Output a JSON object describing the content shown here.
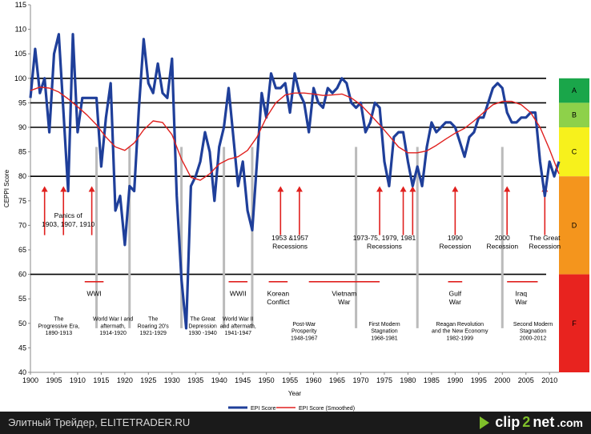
{
  "chart_data": {
    "type": "line",
    "title": "",
    "xlabel": "Year",
    "ylabel": "CEPPI Score",
    "xlim": [
      1900,
      2012
    ],
    "ylim": [
      40,
      115
    ],
    "x_ticks": [
      1900,
      1905,
      1910,
      1915,
      1920,
      1925,
      1930,
      1935,
      1940,
      1945,
      1950,
      1955,
      1960,
      1965,
      1970,
      1975,
      1980,
      1985,
      1990,
      1995,
      2000,
      2005,
      2010
    ],
    "y_ticks": [
      40,
      45,
      50,
      55,
      60,
      65,
      70,
      75,
      80,
      85,
      90,
      95,
      100,
      105,
      110,
      115
    ],
    "reference_lines": [
      100,
      95,
      90,
      80,
      60
    ],
    "series": [
      {
        "name": "EPI Score",
        "color": "#1f3f9a",
        "x": [
          1900,
          1901,
          1902,
          1903,
          1904,
          1905,
          1906,
          1907,
          1908,
          1909,
          1910,
          1911,
          1912,
          1913,
          1914,
          1915,
          1916,
          1917,
          1918,
          1919,
          1920,
          1921,
          1922,
          1923,
          1924,
          1925,
          1926,
          1927,
          1928,
          1929,
          1930,
          1931,
          1932,
          1933,
          1934,
          1935,
          1936,
          1937,
          1938,
          1939,
          1940,
          1941,
          1942,
          1943,
          1944,
          1945,
          1946,
          1947,
          1948,
          1949,
          1950,
          1951,
          1952,
          1953,
          1954,
          1955,
          1956,
          1957,
          1958,
          1959,
          1960,
          1961,
          1962,
          1963,
          1964,
          1965,
          1966,
          1967,
          1968,
          1969,
          1970,
          1971,
          1972,
          1973,
          1974,
          1975,
          1976,
          1977,
          1978,
          1979,
          1980,
          1981,
          1982,
          1983,
          1984,
          1985,
          1986,
          1987,
          1988,
          1989,
          1990,
          1991,
          1992,
          1993,
          1994,
          1995,
          1996,
          1997,
          1998,
          1999,
          2000,
          2001,
          2002,
          2003,
          2004,
          2005,
          2006,
          2007,
          2008,
          2009,
          2010,
          2011,
          2012
        ],
        "values": [
          96,
          106,
          97,
          100,
          89,
          105,
          109,
          93,
          77,
          109,
          89,
          96,
          96,
          96,
          96,
          82,
          92,
          99,
          73,
          76,
          66,
          78,
          77,
          94,
          108,
          99,
          97,
          103,
          97,
          96,
          104,
          76,
          59,
          49,
          78,
          80,
          83,
          89,
          85,
          75,
          86,
          90,
          98,
          88,
          78,
          83,
          73,
          69,
          83,
          97,
          92,
          101,
          98,
          98,
          99,
          93,
          101,
          97,
          95,
          89,
          98,
          95,
          94,
          98,
          97,
          98,
          100,
          99,
          95,
          94,
          95,
          89,
          91,
          95,
          94,
          83,
          78,
          88,
          89,
          89,
          83,
          78,
          82,
          78,
          86,
          91,
          89,
          90,
          91,
          91,
          90,
          87,
          84,
          88,
          89,
          92,
          92,
          95,
          98,
          99,
          98,
          93,
          91,
          91,
          92,
          92,
          93,
          93,
          83,
          76,
          83,
          80,
          83
        ]
      },
      {
        "name": "EPI Score (Smoothed)",
        "color": "#e0201e",
        "x": [
          1900,
          1902,
          1904,
          1906,
          1908,
          1910,
          1912,
          1914,
          1916,
          1918,
          1920,
          1922,
          1924,
          1926,
          1928,
          1930,
          1932,
          1934,
          1936,
          1938,
          1940,
          1942,
          1944,
          1946,
          1948,
          1950,
          1952,
          1954,
          1956,
          1958,
          1960,
          1962,
          1964,
          1966,
          1968,
          1970,
          1972,
          1974,
          1976,
          1978,
          1980,
          1982,
          1984,
          1986,
          1988,
          1990,
          1992,
          1994,
          1996,
          1998,
          2000,
          2002,
          2004,
          2006,
          2008,
          2010,
          2012
        ],
        "values": [
          97.5,
          98.2,
          98.0,
          97.2,
          95.8,
          94.2,
          92.5,
          90.5,
          88.0,
          86.0,
          85.3,
          86.8,
          89.5,
          91.3,
          91.0,
          88.5,
          83.5,
          79.8,
          79.2,
          80.5,
          82.5,
          83.5,
          84.0,
          85.3,
          88.0,
          92.0,
          95.0,
          96.6,
          97.0,
          97.0,
          96.8,
          96.5,
          96.6,
          96.8,
          96.0,
          94.6,
          92.6,
          90.5,
          88.3,
          86.0,
          84.8,
          84.8,
          85.2,
          86.3,
          87.6,
          88.8,
          89.8,
          91.3,
          93.0,
          94.6,
          95.3,
          95.3,
          94.6,
          93.0,
          90.0,
          85.5,
          80.5
        ]
      }
    ],
    "grade_bands": [
      {
        "label": "A",
        "from": 95,
        "to": 100,
        "color": "#1aa64a"
      },
      {
        "label": "B",
        "from": 90,
        "to": 95,
        "color": "#8ed14a"
      },
      {
        "label": "C",
        "from": 80,
        "to": 90,
        "color": "#f7f11c"
      },
      {
        "label": "D",
        "from": 60,
        "to": 80,
        "color": "#f4951d"
      },
      {
        "label": "F",
        "from": 40,
        "to": 60,
        "color": "#e8231f"
      }
    ],
    "gray_markers": [
      1914,
      1921,
      1932,
      1941,
      1947,
      1969,
      1982,
      2000
    ],
    "recession_arrows": [
      1903,
      1907,
      1913,
      1953,
      1957,
      1974,
      1979,
      1981,
      1990,
      2001,
      2009
    ],
    "war_bars": [
      {
        "label": "WWI",
        "from": 1911.5,
        "to": 1915.5,
        "label_x": 1913.5
      },
      {
        "label": "WWII",
        "from": 1942,
        "to": 1946,
        "label_x": 1944
      },
      {
        "label": "Korean Conflict",
        "from": 1950.5,
        "to": 1954.5,
        "label_x": 1952.5
      },
      {
        "label": "Vietnam War",
        "from": 1959,
        "to": 1974,
        "label_x": 1966.5
      },
      {
        "label": "Gulf War",
        "from": 1988.5,
        "to": 1991.5,
        "label_x": 1990
      },
      {
        "label": "Iraq War",
        "from": 2001,
        "to": 2007.5,
        "label_x": 2004
      }
    ],
    "recession_labels": [
      {
        "text": "Panics of\n1903, 1907, 1910",
        "x": 1908,
        "y": 71.5
      },
      {
        "text": "1953 &1957\nRecessions",
        "x": 1955,
        "y": 67.0
      },
      {
        "text": "1973-75, 1979, 1981\nRecessions",
        "x": 1975,
        "y": 67.0
      },
      {
        "text": "1990\nRecession",
        "x": 1990,
        "y": 67.0
      },
      {
        "text": "2000\nRecession",
        "x": 2000,
        "y": 67.0
      },
      {
        "text": "The Great\nRecession",
        "x": 2009,
        "y": 67.0
      }
    ],
    "era_labels": [
      {
        "text": "The\nProgressive Era,\n1890-1913",
        "x": 1906,
        "y": 50.5
      },
      {
        "text": "World War I and\naftermath,\n1914-1920",
        "x": 1917.5,
        "y": 50.5
      },
      {
        "text": "The\nRoaring 20's\n1921-1929",
        "x": 1926,
        "y": 50.5
      },
      {
        "text": "The Great\nDepression\n1930 -1940",
        "x": 1936.5,
        "y": 50.5
      },
      {
        "text": "World War II\nand aftermath,\n1941-1947",
        "x": 1944,
        "y": 50.5
      },
      {
        "text": "Post-War\nProsperity\n1948-1967",
        "x": 1958,
        "y": 49.5
      },
      {
        "text": "First Modern\nStagnation\n1968-1981",
        "x": 1975,
        "y": 49.5
      },
      {
        "text": "Reagan Revolution\nand the New Economy\n1982-1999",
        "x": 1991,
        "y": 49.5
      },
      {
        "text": "Second Modern\nStagnation\n2000-2012",
        "x": 2006.5,
        "y": 49.5
      }
    ]
  },
  "footer": {
    "caption": "Элитный Трейдер, ELITETRADER.RU",
    "logo_left": "clip",
    "logo_mid": "2",
    "logo_right": "net",
    "logo_suffix": ".com"
  }
}
